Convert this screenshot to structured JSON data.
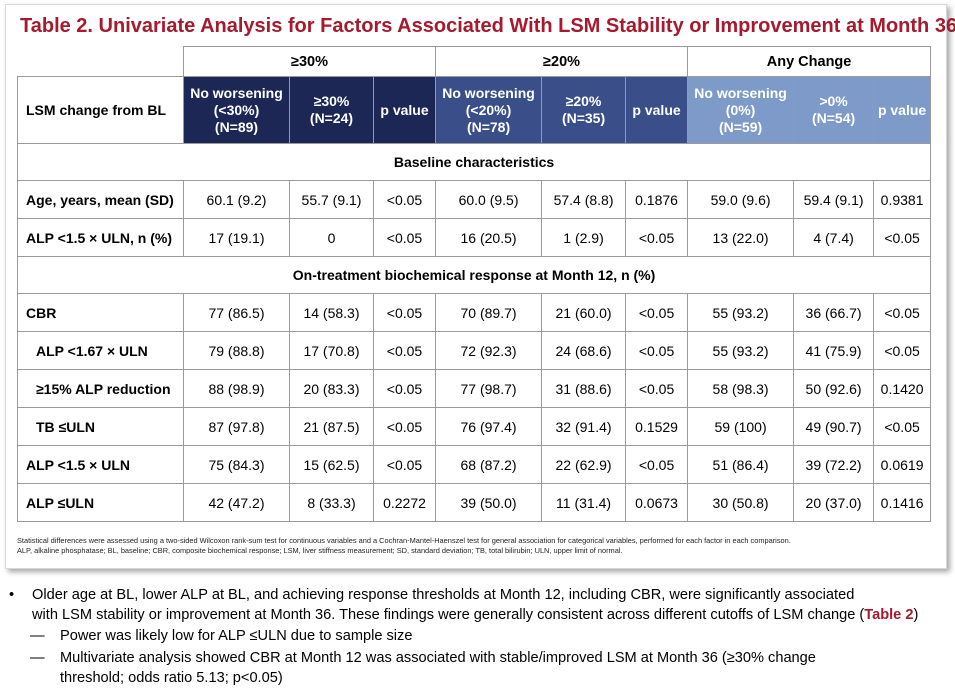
{
  "title": "Table 2. Univariate Analysis for Factors Associated With LSM Stability or Improvement at Month 36",
  "groups": [
    "≥30%",
    "≥20%",
    "Any Change"
  ],
  "header": {
    "row_label": "LSM change from BL",
    "cols": [
      {
        "l1": "No worsening",
        "l2": "(<30%)",
        "l3": "(N=89)"
      },
      {
        "l1": "≥30%",
        "l2": "(N=24)",
        "l3": ""
      },
      {
        "l1": "p value",
        "l2": "",
        "l3": ""
      },
      {
        "l1": "No worsening",
        "l2": "(<20%)",
        "l3": "(N=78)"
      },
      {
        "l1": "≥20%",
        "l2": "(N=35)",
        "l3": ""
      },
      {
        "l1": "p value",
        "l2": "",
        "l3": ""
      },
      {
        "l1": "No worsening",
        "l2": "(0%)",
        "l3": "(N=59)"
      },
      {
        "l1": ">0%",
        "l2": "(N=54)",
        "l3": ""
      },
      {
        "l1": "p value",
        "l2": "",
        "l3": ""
      }
    ]
  },
  "sections": {
    "baseline": "Baseline characteristics",
    "ontreatment": "On-treatment biochemical response at Month 12, n (%)"
  },
  "rows": [
    {
      "label": "Age, years, mean (SD)",
      "v": [
        "60.1 (9.2)",
        "55.7 (9.1)",
        "<0.05",
        "60.0 (9.5)",
        "57.4 (8.8)",
        "0.1876",
        "59.0 (9.6)",
        "59.4 (9.1)",
        "0.9381"
      ]
    },
    {
      "label": "ALP <1.5 × ULN, n (%)",
      "v": [
        "17 (19.1)",
        "0",
        "<0.05",
        "16 (20.5)",
        "1 (2.9)",
        "<0.05",
        "13 (22.0)",
        "4 (7.4)",
        "<0.05"
      ]
    },
    {
      "label": "CBR",
      "v": [
        "77 (86.5)",
        "14 (58.3)",
        "<0.05",
        "70 (89.7)",
        "21 (60.0)",
        "<0.05",
        "55 (93.2)",
        "36 (66.7)",
        "<0.05"
      ]
    },
    {
      "label": "ALP <1.67 × ULN",
      "v": [
        "79 (88.8)",
        "17 (70.8)",
        "<0.05",
        "72 (92.3)",
        "24 (68.6)",
        "<0.05",
        "55 (93.2)",
        "41 (75.9)",
        "<0.05"
      ]
    },
    {
      "label": "≥15% ALP reduction",
      "v": [
        "88 (98.9)",
        "20 (83.3)",
        "<0.05",
        "77 (98.7)",
        "31 (88.6)",
        "<0.05",
        "58 (98.3)",
        "50 (92.6)",
        "0.1420"
      ]
    },
    {
      "label": "TB ≤ULN",
      "v": [
        "87 (97.8)",
        "21 (87.5)",
        "<0.05",
        "76 (97.4)",
        "32 (91.4)",
        "0.1529",
        "59 (100)",
        "49 (90.7)",
        "<0.05"
      ]
    },
    {
      "label": "ALP <1.5 × ULN",
      "v": [
        "75 (84.3)",
        "15 (62.5)",
        "<0.05",
        "68 (87.2)",
        "22 (62.9)",
        "<0.05",
        "51 (86.4)",
        "39 (72.2)",
        "0.0619"
      ]
    },
    {
      "label": "ALP ≤ULN",
      "v": [
        "42 (47.2)",
        "8 (33.3)",
        "0.2272",
        "39 (50.0)",
        "11 (31.4)",
        "0.0673",
        "30 (50.8)",
        "20 (37.0)",
        "0.1416"
      ]
    }
  ],
  "footnote": {
    "line1": "Statistical differences were assessed using a two-sided Wilcoxon rank-sum test for continuous variables and a Cochran-Mantel-Haenszel test for general association for categorical variables, performed for each factor in each comparison.",
    "line2": "ALP, alkaline phosphatase; BL, baseline; CBR, composite biochemical response; LSM, liver stiffness measurement; SD, standard deviation; TB, total bilirubin; ULN, upper limit of normal."
  },
  "bullets": {
    "b1_marker": "•",
    "b1_line1": "Older age at BL, lower ALP at BL, and achieving response thresholds at Month 12, including CBR, were significantly associated",
    "b1_line2": "with LSM stability or improvement at Month 36. These findings were generally consistent across different cutoffs of LSM change (",
    "b1_ref": "Table 2",
    "b1_close": ")",
    "sub_marker": "—",
    "s1": "Power was likely low for ALP ≤ULN due to sample size",
    "s2_line1": "Multivariate analysis showed CBR at Month 12 was associated with stable/improved LSM at Month 36 (≥30% change",
    "s2_line2": "threshold; odds ratio 5.13; p<0.05)"
  },
  "colors": {
    "title": "#a6192e",
    "group1": "#1c2755",
    "group2": "#3a4f8a",
    "group3": "#7d9ac9"
  }
}
